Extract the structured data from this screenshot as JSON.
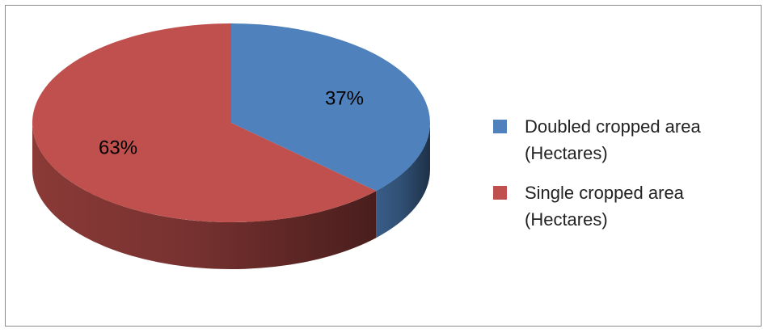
{
  "chart_data": {
    "type": "pie",
    "style": "3d",
    "slices": [
      {
        "label": "Doubled cropped area (Hectares)",
        "value": 37,
        "display": "37%",
        "color": "#4F81BD"
      },
      {
        "label": "Single cropped area (Hectares)",
        "value": 63,
        "display": "63%",
        "color": "#C0504D"
      }
    ],
    "legend_position": "right"
  },
  "legend": {
    "items": [
      {
        "label": "Doubled cropped area (Hectares)",
        "color": "#4F81BD"
      },
      {
        "label": "Single cropped area (Hectares)",
        "color": "#C0504D"
      }
    ]
  }
}
